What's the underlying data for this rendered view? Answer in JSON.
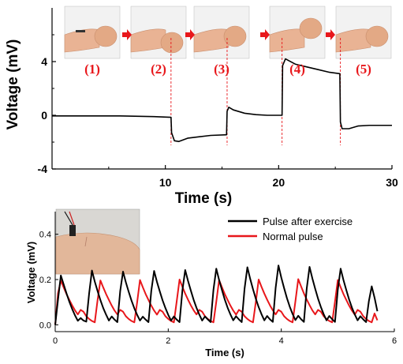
{
  "chart_data": [
    {
      "type": "line",
      "xlabel": "Time (s)",
      "ylabel": "Voltage (mV)",
      "xlim": [
        0,
        30
      ],
      "ylim": [
        -4,
        8
      ],
      "xticks": [
        "10",
        "20",
        "30"
      ],
      "yticks": [
        "-4",
        "0",
        "4"
      ],
      "grid": false,
      "series": [
        {
          "color": "#000000",
          "x": [
            0,
            3,
            6,
            9,
            10.5,
            10.55,
            10.8,
            11.2,
            12,
            13,
            14,
            15.4,
            15.45,
            15.6,
            16,
            17,
            18,
            19,
            20.3,
            20.35,
            20.6,
            21.5,
            22.5,
            23.5,
            24.5,
            25.4,
            25.45,
            25.6,
            26.2,
            27,
            28,
            29,
            30
          ],
          "y": [
            -0.05,
            -0.05,
            -0.05,
            -0.1,
            -0.15,
            -1.3,
            -1.9,
            -1.95,
            -1.7,
            -1.6,
            -1.5,
            -1.45,
            0.3,
            0.6,
            0.4,
            0.15,
            0.05,
            0.0,
            0.0,
            3.7,
            4.2,
            3.8,
            3.6,
            3.4,
            3.2,
            3.1,
            -0.5,
            -1.0,
            -1.0,
            -0.8,
            -0.75,
            -0.75,
            -0.75
          ]
        }
      ],
      "photo_labels": [
        "(1)",
        "(2)",
        "(3)",
        "(4)",
        "(5)"
      ],
      "event_lines_x": [
        10.5,
        15.45,
        20.3,
        25.45
      ]
    },
    {
      "type": "line",
      "xlabel": "Time (s)",
      "ylabel": "Voltage (mV)",
      "xlim": [
        0,
        6
      ],
      "ylim": [
        -0.03,
        0.5
      ],
      "xticks": [
        "0",
        "2",
        "4",
        "6"
      ],
      "yticks": [
        "0.0",
        "0.2",
        "0.4"
      ],
      "legend_position": "top-right",
      "grid": false,
      "series": [
        {
          "name": "Pulse after exercise",
          "color": "#000000",
          "x": [
            0,
            0.05,
            0.1,
            0.15,
            0.2,
            0.25,
            0.3,
            0.35,
            0.4,
            0.45,
            0.5,
            0.55,
            0.6,
            0.65,
            0.7,
            0.75,
            0.8,
            0.85,
            0.9,
            0.95,
            1,
            1.05,
            1.1,
            1.15,
            1.2,
            1.25,
            1.3,
            1.35,
            1.4,
            1.45,
            1.5,
            1.55,
            1.6,
            1.65,
            1.7,
            1.75,
            1.8,
            1.85,
            1.9,
            1.95,
            2,
            2.05,
            2.1,
            2.15,
            2.2,
            2.25,
            2.3,
            2.35,
            2.4,
            2.45,
            2.5,
            2.55,
            2.6,
            2.65,
            2.7,
            2.75,
            2.8,
            2.85,
            2.9,
            2.95,
            3,
            3.05,
            3.1,
            3.15,
            3.2,
            3.25,
            3.3,
            3.35,
            3.4,
            3.45,
            3.5,
            3.55,
            3.6,
            3.65,
            3.7,
            3.75,
            3.8,
            3.85,
            3.9,
            3.95,
            4,
            4.05,
            4.1,
            4.15,
            4.2,
            4.25,
            4.3,
            4.35,
            4.4,
            4.45,
            4.5,
            4.55,
            4.6,
            4.65,
            4.7,
            4.75,
            4.8,
            4.85,
            4.9,
            4.95,
            5,
            5.05,
            5.1,
            5.15,
            5.2,
            5.25,
            5.3,
            5.35,
            5.4,
            5.45,
            5.5,
            5.55,
            5.6,
            5.65,
            5.7
          ],
          "y": [
            0.0,
            0.112,
            0.218,
            0.178,
            0.139,
            0.102,
            0.07,
            0.042,
            0.018,
            0.03,
            0.019,
            0.014,
            0.138,
            0.24,
            0.191,
            0.149,
            0.109,
            0.074,
            0.045,
            0.019,
            0.037,
            0.023,
            0.012,
            0.149,
            0.235,
            0.188,
            0.146,
            0.107,
            0.073,
            0.044,
            0.019,
            0.036,
            0.023,
            0.012,
            0.15,
            0.238,
            0.19,
            0.148,
            0.108,
            0.074,
            0.044,
            0.019,
            0.037,
            0.023,
            0.012,
            0.151,
            0.242,
            0.194,
            0.151,
            0.11,
            0.075,
            0.045,
            0.019,
            0.037,
            0.024,
            0.012,
            0.155,
            0.248,
            0.198,
            0.154,
            0.112,
            0.076,
            0.046,
            0.02,
            0.038,
            0.024,
            0.012,
            0.159,
            0.254,
            0.203,
            0.157,
            0.115,
            0.078,
            0.047,
            0.02,
            0.039,
            0.024,
            0.013,
            0.163,
            0.262,
            0.209,
            0.162,
            0.118,
            0.08,
            0.048,
            0.021,
            0.04,
            0.025,
            0.013,
            0.16,
            0.256,
            0.205,
            0.159,
            0.116,
            0.079,
            0.047,
            0.02,
            0.039,
            0.025,
            0.013,
            0.155,
            0.248,
            0.198,
            0.154,
            0.112,
            0.076,
            0.046,
            0.02,
            0.038,
            0.024,
            0.012,
            0.105,
            0.17,
            0.12,
            0.06
          ]
        },
        {
          "name": "Normal pulse",
          "color": "#e8171b",
          "x": [
            0,
            0.05,
            0.1,
            0.15,
            0.2,
            0.25,
            0.3,
            0.35,
            0.4,
            0.45,
            0.5,
            0.55,
            0.6,
            0.65,
            0.7,
            0.75,
            0.8,
            0.85,
            0.9,
            0.95,
            1,
            1.05,
            1.1,
            1.15,
            1.2,
            1.25,
            1.3,
            1.35,
            1.4,
            1.45,
            1.5,
            1.55,
            1.6,
            1.65,
            1.7,
            1.75,
            1.8,
            1.85,
            1.9,
            1.95,
            2,
            2.05,
            2.1,
            2.15,
            2.2,
            2.25,
            2.3,
            2.35,
            2.4,
            2.45,
            2.5,
            2.55,
            2.6,
            2.65,
            2.7,
            2.75,
            2.8,
            2.85,
            2.9,
            2.95,
            3,
            3.05,
            3.1,
            3.15,
            3.2,
            3.25,
            3.3,
            3.35,
            3.4,
            3.45,
            3.5,
            3.55,
            3.6,
            3.65,
            3.7,
            3.75,
            3.8,
            3.85,
            3.9,
            3.95,
            4,
            4.05,
            4.1,
            4.15,
            4.2,
            4.25,
            4.3,
            4.35,
            4.4,
            4.45,
            4.5,
            4.55,
            4.6,
            4.65,
            4.7,
            4.75,
            4.8,
            4.85,
            4.9,
            4.95,
            5,
            5.05,
            5.1,
            5.15,
            5.2,
            5.25,
            5.3,
            5.35,
            5.4,
            5.45,
            5.5,
            5.55,
            5.6,
            5.65,
            5.7
          ],
          "y": [
            0.0,
            0.14,
            0.195,
            0.165,
            0.136,
            0.11,
            0.086,
            0.064,
            0.046,
            0.066,
            0.058,
            0.038,
            0.026,
            0.017,
            0.011,
            0.11,
            0.196,
            0.165,
            0.136,
            0.11,
            0.085,
            0.063,
            0.046,
            0.066,
            0.058,
            0.038,
            0.026,
            0.017,
            0.011,
            0.1,
            0.198,
            0.166,
            0.136,
            0.11,
            0.085,
            0.063,
            0.045,
            0.066,
            0.058,
            0.038,
            0.026,
            0.017,
            0.011,
            0.104,
            0.2,
            0.168,
            0.138,
            0.111,
            0.086,
            0.064,
            0.046,
            0.066,
            0.058,
            0.038,
            0.026,
            0.017,
            0.011,
            0.102,
            0.198,
            0.166,
            0.136,
            0.11,
            0.085,
            0.063,
            0.045,
            0.066,
            0.058,
            0.038,
            0.026,
            0.017,
            0.011,
            0.102,
            0.2,
            0.168,
            0.138,
            0.111,
            0.086,
            0.064,
            0.046,
            0.066,
            0.058,
            0.038,
            0.026,
            0.017,
            0.011,
            0.104,
            0.202,
            0.17,
            0.139,
            0.112,
            0.087,
            0.064,
            0.046,
            0.066,
            0.058,
            0.038,
            0.026,
            0.017,
            0.011,
            0.102,
            0.198,
            0.166,
            0.136,
            0.11,
            0.085,
            0.063,
            0.045,
            0.066,
            0.058,
            0.038,
            0.026,
            0.017,
            0.011,
            0.05,
            0.02
          ]
        }
      ],
      "inset_photo": "wrist-sensor-photo"
    }
  ]
}
